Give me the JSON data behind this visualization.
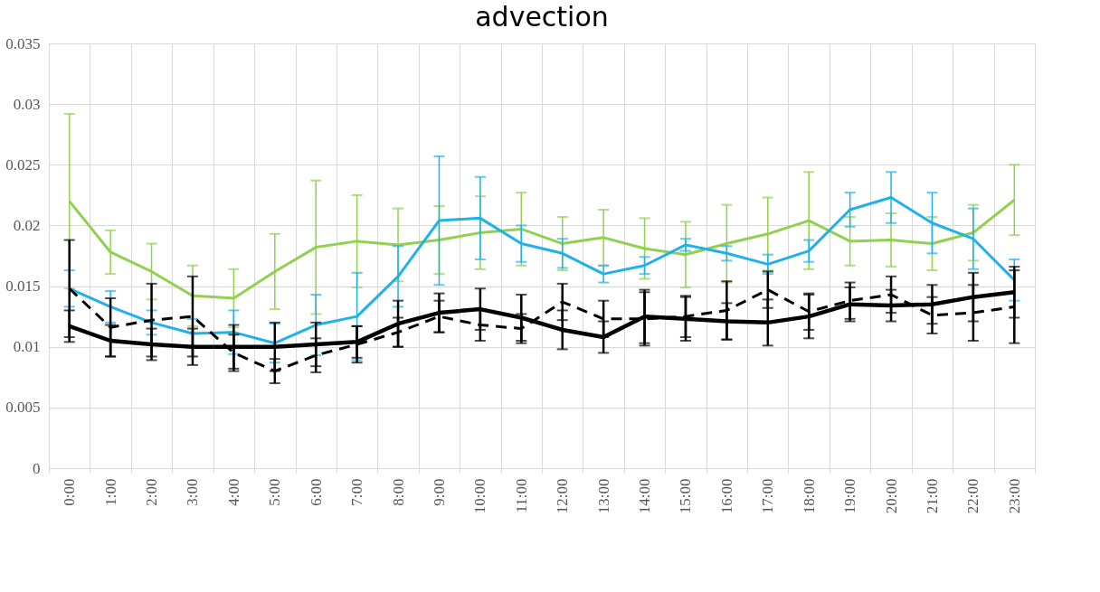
{
  "chart_data": {
    "type": "line",
    "title": "advection",
    "categories": [
      "0:00",
      "1:00",
      "2:00",
      "3:00",
      "4:00",
      "5:00",
      "6:00",
      "7:00",
      "8:00",
      "9:00",
      "10:00",
      "11:00",
      "12:00",
      "13:00",
      "14:00",
      "15:00",
      "16:00",
      "17:00",
      "18:00",
      "19:00",
      "20:00",
      "21:00",
      "22:00",
      "23:00"
    ],
    "series": [
      {
        "color": "#92d050",
        "line_style": "solid",
        "values": [
          0.022,
          0.0178,
          0.0162,
          0.0142,
          0.014,
          0.0162,
          0.0182,
          0.0187,
          0.0184,
          0.0188,
          0.0194,
          0.0197,
          0.0185,
          0.019,
          0.0181,
          0.0176,
          0.0185,
          0.0193,
          0.0204,
          0.0187,
          0.0188,
          0.0185,
          0.0194,
          0.0221
        ],
        "errors": [
          0.0072,
          0.0018,
          0.0023,
          0.0025,
          0.0024,
          0.0031,
          0.0055,
          0.0038,
          0.003,
          0.0028,
          0.003,
          0.003,
          0.0022,
          0.0023,
          0.0025,
          0.0027,
          0.0032,
          0.003,
          0.004,
          0.002,
          0.0022,
          0.0022,
          0.0023,
          0.0029
        ]
      },
      {
        "color": "#1fb2e8",
        "line_style": "solid",
        "values": [
          0.0148,
          0.0133,
          0.012,
          0.0111,
          0.0112,
          0.0103,
          0.0118,
          0.0125,
          0.0158,
          0.0204,
          0.0206,
          0.0185,
          0.0177,
          0.016,
          0.0167,
          0.0184,
          0.0177,
          0.0168,
          0.0179,
          0.0213,
          0.0223,
          0.0202,
          0.0189,
          0.0155
        ],
        "errors": [
          0.0015,
          0.0013,
          0.001,
          0.0012,
          0.0018,
          0.0016,
          0.0025,
          0.0036,
          0.0025,
          0.0053,
          0.0034,
          0.0015,
          0.0012,
          0.0007,
          0.0007,
          0.0005,
          0.0006,
          0.0008,
          0.0009,
          0.0014,
          0.0021,
          0.0025,
          0.0025,
          0.0017
        ]
      },
      {
        "color": "#000000",
        "line_style": "dashed",
        "values": [
          0.0148,
          0.0116,
          0.0122,
          0.0125,
          0.0095,
          0.008,
          0.0093,
          0.0102,
          0.0112,
          0.0125,
          0.0118,
          0.0115,
          0.0137,
          0.0123,
          0.0123,
          0.0125,
          0.013,
          0.0147,
          0.0129,
          0.0138,
          0.0143,
          0.0126,
          0.0128,
          0.0133
        ],
        "errors": [
          0.004,
          0.0024,
          0.003,
          0.0033,
          0.0015,
          0.001,
          0.0014,
          0.0015,
          0.0012,
          0.0013,
          0.0013,
          0.0012,
          0.0015,
          0.0015,
          0.0022,
          0.0017,
          0.0024,
          0.0015,
          0.0015,
          0.0015,
          0.0015,
          0.0015,
          0.0023,
          0.003
        ]
      },
      {
        "color": "#000000",
        "line_style": "solid",
        "values": [
          0.0117,
          0.0105,
          0.0102,
          0.01,
          0.01,
          0.01,
          0.0102,
          0.0104,
          0.0119,
          0.0128,
          0.0131,
          0.0124,
          0.0114,
          0.0108,
          0.0125,
          0.0123,
          0.0121,
          0.012,
          0.0125,
          0.0135,
          0.0134,
          0.0135,
          0.0141,
          0.0145
        ],
        "errors": [
          0.0013,
          0.0013,
          0.0013,
          0.0015,
          0.0018,
          0.002,
          0.0018,
          0.0013,
          0.0019,
          0.0016,
          0.0017,
          0.0019,
          0.0016,
          0.0013,
          0.0022,
          0.0018,
          0.0015,
          0.0019,
          0.0018,
          0.0014,
          0.0013,
          0.0016,
          0.002,
          0.0021
        ]
      }
    ],
    "ylim": [
      0,
      0.035
    ],
    "yticks": [
      0,
      0.005,
      0.01,
      0.015,
      0.02,
      0.025,
      0.03,
      0.035
    ],
    "grid": true,
    "marker": "none"
  }
}
